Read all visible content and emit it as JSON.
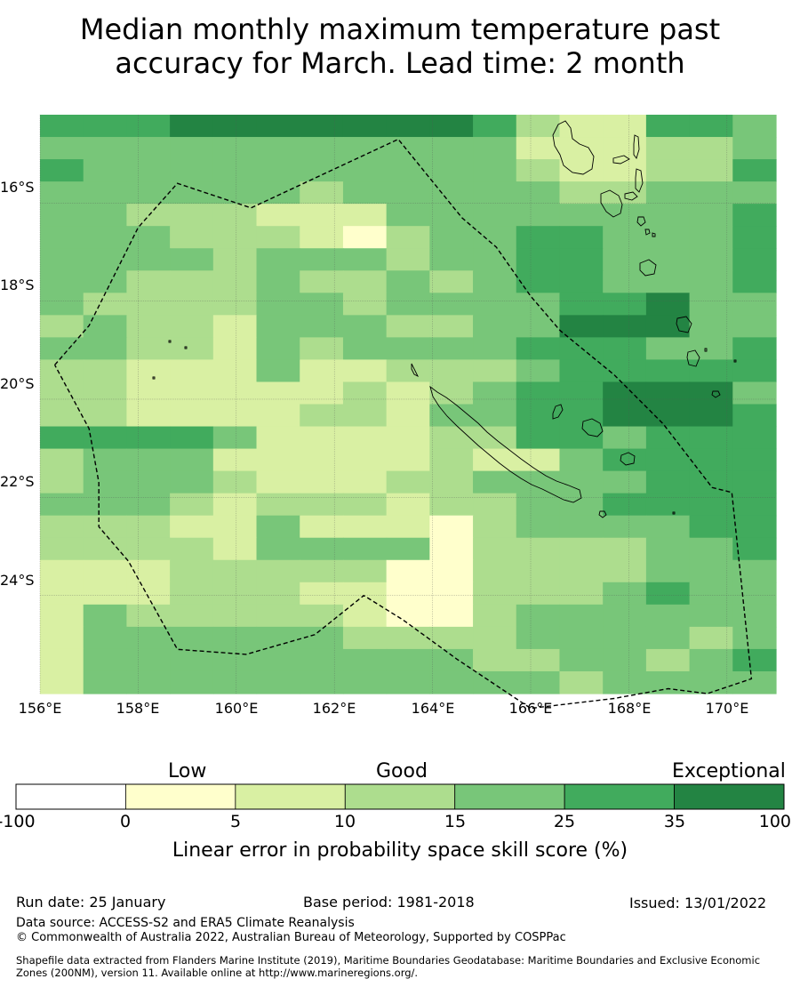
{
  "title": "Median monthly maximum temperature past\naccuracy for March. Lead time: 2 month",
  "map": {
    "lon_range": [
      156.0,
      171.0
    ],
    "lat_range": [
      -26.0,
      -14.2
    ],
    "grid_step_deg": 0.833,
    "lat_ticks": [
      "16°S",
      "18°S",
      "20°S",
      "22°S",
      "24°S"
    ],
    "lat_tick_values": [
      -16,
      -18,
      -20,
      -22,
      -24
    ],
    "lon_ticks": [
      "156°E",
      "158°E",
      "160°E",
      "162°E",
      "164°E",
      "166°E",
      "168°E",
      "170°E"
    ],
    "lon_tick_values": [
      156,
      158,
      160,
      162,
      164,
      166,
      168,
      170
    ],
    "gridlines": true,
    "skill_class_grid": [
      "55566666665322554",
      "44444444444222334",
      "54444444444322335",
      "44444434444433444",
      "44333222444444445",
      "44433321344554445",
      "44443444344554445",
      "44333433434554445",
      "43333443444455644",
      "34332444334466644",
      "44332434444555445",
      "33222422333455555",
      "33222223234556664",
      "33222233244556665",
      "55554222233554555",
      "34442222232245555",
      "34443222334444555",
      "44432333233445555",
      "33322422213444455",
      "33332444413333445",
      "22233333113333444",
      "22233322113334544",
      "24333332113444444",
      "24444443333444434",
      "24444444443344345",
      "24444444444434444"
    ],
    "boundary_lonlat": [
      [
        156.3,
        -19.3
      ],
      [
        157.0,
        -18.5
      ],
      [
        157.5,
        -17.5
      ],
      [
        158.0,
        -16.5
      ],
      [
        158.8,
        -15.6
      ],
      [
        160.3,
        -16.1
      ],
      [
        163.3,
        -14.7
      ],
      [
        164.6,
        -16.3
      ],
      [
        165.3,
        -16.9
      ],
      [
        166.0,
        -17.9
      ],
      [
        166.6,
        -18.6
      ],
      [
        167.7,
        -19.5
      ],
      [
        168.7,
        -20.5
      ],
      [
        169.7,
        -21.8
      ],
      [
        170.1,
        -21.9
      ],
      [
        170.5,
        -25.7
      ],
      [
        169.6,
        -26.0
      ],
      [
        168.8,
        -25.9
      ],
      [
        167.7,
        -26.1
      ],
      [
        166.0,
        -26.3
      ],
      [
        164.5,
        -25.3
      ],
      [
        163.4,
        -24.5
      ],
      [
        162.6,
        -24.0
      ],
      [
        161.6,
        -24.8
      ],
      [
        160.2,
        -25.2
      ],
      [
        158.8,
        -25.1
      ],
      [
        157.8,
        -23.3
      ],
      [
        157.2,
        -22.6
      ],
      [
        157.2,
        -21.7
      ],
      [
        157.0,
        -20.6
      ]
    ]
  },
  "legend": {
    "categories": [
      "Low",
      "Good",
      "Exceptional"
    ],
    "ticks": [
      "-100",
      "0",
      "5",
      "10",
      "15",
      "25",
      "35",
      "100"
    ],
    "colors": [
      "#ffffff",
      "#ffffcc",
      "#d9f0a3",
      "#addd8e",
      "#78c679",
      "#41ab5d",
      "#238443"
    ],
    "title": "Linear error in probability space skill score (%)"
  },
  "footer": {
    "run_date": "Run date: 25 January",
    "base_period": "Base period: 1981-2018",
    "issued": "Issued: 13/01/2022",
    "data_source": "Data source: ACCESS-S2 and ERA5 Climate Reanalysis",
    "copyright": "© Commonwealth of Australia 2022, Australian Bureau of Meteorology, Supported by COSPPac",
    "shapefile_line1": "Shapefile data extracted from Flanders Marine Institute (2019), Maritime Boundaries Geodatabase: Maritime Boundaries and Exclusive Economic",
    "shapefile_line2": "Zones (200NM), version 11. Available online at http://www.marineregions.org/."
  }
}
